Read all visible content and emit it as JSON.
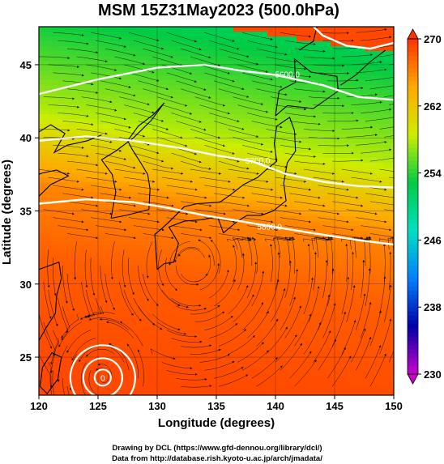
{
  "chart_data": {
    "type": "heatmap",
    "title": "MSM 15Z31May2023 (500.0hPa)",
    "xlabel": "Longitude (degrees)",
    "ylabel": "Latitude  (degrees)",
    "xlim": [
      120,
      150
    ],
    "ylim": [
      22.4,
      47.6
    ],
    "x_ticks": [
      120,
      125,
      130,
      135,
      140,
      145,
      150
    ],
    "y_ticks": [
      25,
      30,
      35,
      40,
      45
    ],
    "colorbar": {
      "min": 230,
      "max": 270,
      "ticks": [
        230,
        238,
        246,
        254,
        262,
        270
      ],
      "colors": [
        "#cc00cc",
        "#0000aa",
        "#0080ff",
        "#00e0c0",
        "#00cc44",
        "#ccee00",
        "#ffaa00",
        "#ff3300"
      ]
    },
    "temperature_field_lat_profile": [
      {
        "lat": 47.6,
        "value": 252
      },
      {
        "lat": 45,
        "value": 254
      },
      {
        "lat": 40,
        "value": 258
      },
      {
        "lat": 37,
        "value": 263
      },
      {
        "lat": 35,
        "value": 266
      },
      {
        "lat": 30,
        "value": 268
      },
      {
        "lat": 22.4,
        "value": 269
      }
    ],
    "contours": [
      {
        "label": "5600.0",
        "label_lon": 141,
        "label_lat": 44.3,
        "path": [
          [
            120,
            43.0
          ],
          [
            125,
            44.0
          ],
          [
            130,
            44.8
          ],
          [
            134,
            45.0
          ],
          [
            137,
            44.6
          ],
          [
            140,
            44.3
          ],
          [
            144,
            43.6
          ],
          [
            147,
            42.8
          ],
          [
            150,
            42.6
          ]
        ]
      },
      {
        "label": "5700.0",
        "label_lon": 138.5,
        "label_lat": 38.4,
        "path": [
          [
            120,
            39.8
          ],
          [
            124,
            40.1
          ],
          [
            128,
            39.8
          ],
          [
            132,
            39.3
          ],
          [
            135,
            38.8
          ],
          [
            138,
            38.4
          ],
          [
            141,
            37.5
          ],
          [
            144,
            37.0
          ],
          [
            147,
            36.7
          ],
          [
            150,
            36.6
          ]
        ]
      },
      {
        "label": "5800.0",
        "label_lon": 139.5,
        "label_lat": 33.9,
        "path": [
          [
            120,
            35.5
          ],
          [
            124,
            35.8
          ],
          [
            128,
            35.6
          ],
          [
            131,
            35.2
          ],
          [
            134,
            34.7
          ],
          [
            137,
            34.3
          ],
          [
            140,
            33.9
          ],
          [
            143,
            33.5
          ],
          [
            147,
            33.0
          ],
          [
            150,
            32.7
          ]
        ]
      },
      {
        "label": "",
        "path": [
          [
            142.7,
            48
          ],
          [
            144,
            47
          ],
          [
            146,
            46.3
          ],
          [
            148,
            46.1
          ],
          [
            150,
            46.5
          ]
        ]
      }
    ],
    "lows": [
      {
        "lon": 125.4,
        "lat": 23.6,
        "label": "0"
      }
    ],
    "streamline_flow": "predominantly westerly with anticyclonic circulation south of 33N",
    "credits": [
      "Drawing by DCL (https://www.gfd-dennou.org/library/dcl/)",
      "Data from http://database.rish.kyoto-u.ac.jp/arch/jmadata/"
    ]
  }
}
